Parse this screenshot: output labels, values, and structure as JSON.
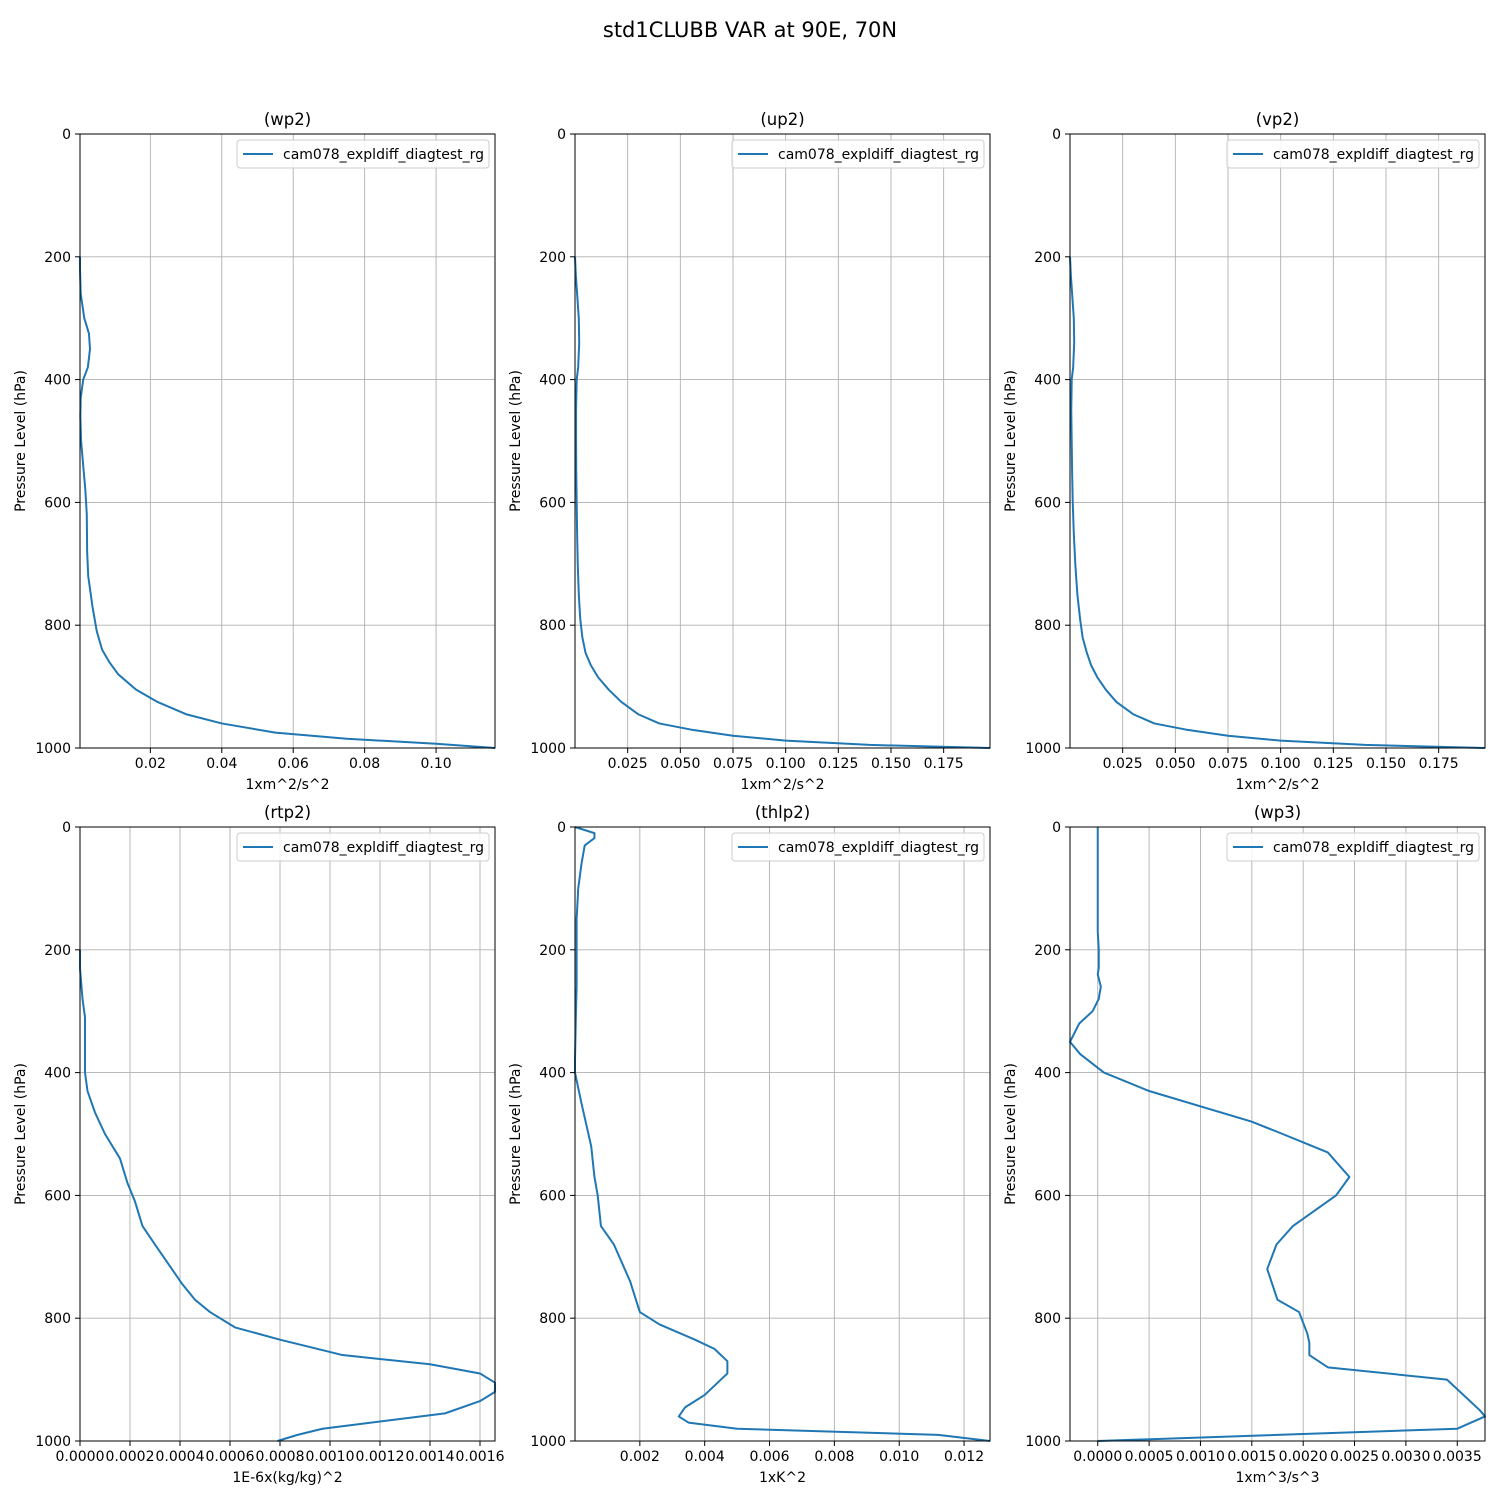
{
  "figure": {
    "suptitle": "std1CLUBB VAR at 90E, 70N"
  },
  "chart_data": [
    {
      "type": "line",
      "title": "(wp2)",
      "xlabel": "1xm^2/s^2",
      "ylabel": "Pressure Level (hPa)",
      "xlim": [
        0.0003,
        0.1165
      ],
      "ylim": [
        1000,
        0
      ],
      "y_inverted": true,
      "xticks": [
        0.02,
        0.04,
        0.06,
        0.08,
        0.1
      ],
      "xtick_labels": [
        "0.02",
        "0.04",
        "0.06",
        "0.08",
        "0.10"
      ],
      "yticks": [
        0,
        200,
        400,
        600,
        800,
        1000
      ],
      "ytick_labels": [
        "0",
        "200",
        "400",
        "600",
        "800",
        "1000"
      ],
      "grid": true,
      "legend_position": "top-right",
      "line_color": "#1f77b4",
      "series": [
        {
          "name": "cam078_expldiff_diagtest_rg",
          "x": [
            0.0003,
            0.0003,
            0.0005,
            0.0015,
            0.0028,
            0.0031,
            0.0025,
            0.0012,
            0.0005,
            0.0004,
            0.0006,
            0.0012,
            0.0018,
            0.0022,
            0.0023,
            0.0026,
            0.0038,
            0.005,
            0.0065,
            0.0085,
            0.011,
            0.016,
            0.022,
            0.03,
            0.04,
            0.055,
            0.075,
            0.1,
            0.1165
          ],
          "y": [
            200,
            220,
            260,
            300,
            325,
            350,
            380,
            400,
            430,
            460,
            500,
            540,
            580,
            620,
            680,
            720,
            770,
            810,
            840,
            860,
            880,
            905,
            925,
            945,
            960,
            975,
            985,
            993,
            1000
          ]
        }
      ]
    },
    {
      "type": "line",
      "title": "(up2)",
      "xlabel": "1xm^2/s^2",
      "ylabel": "Pressure Level (hPa)",
      "xlim": [
        0.0,
        0.197
      ],
      "ylim": [
        1000,
        0
      ],
      "y_inverted": true,
      "xticks": [
        0.025,
        0.05,
        0.075,
        0.1,
        0.125,
        0.15,
        0.175
      ],
      "xtick_labels": [
        "0.025",
        "0.050",
        "0.075",
        "0.100",
        "0.125",
        "0.150",
        "0.175"
      ],
      "yticks": [
        0,
        200,
        400,
        600,
        800,
        1000
      ],
      "ytick_labels": [
        "0",
        "200",
        "400",
        "600",
        "800",
        "1000"
      ],
      "grid": true,
      "legend_position": "top-right",
      "line_color": "#1f77b4",
      "series": [
        {
          "name": "cam078_expldiff_diagtest_rg",
          "x": [
            0.0,
            0.0004,
            0.0012,
            0.0018,
            0.002,
            0.0015,
            0.0008,
            0.0005,
            0.0005,
            0.0006,
            0.0008,
            0.001,
            0.0013,
            0.0018,
            0.0025,
            0.0035,
            0.005,
            0.0075,
            0.011,
            0.016,
            0.022,
            0.03,
            0.04,
            0.055,
            0.075,
            0.1,
            0.14,
            0.197
          ],
          "y": [
            200,
            230,
            270,
            300,
            340,
            380,
            400,
            450,
            500,
            550,
            600,
            650,
            700,
            750,
            790,
            820,
            845,
            865,
            885,
            905,
            925,
            945,
            960,
            970,
            980,
            988,
            995,
            1000
          ]
        }
      ]
    },
    {
      "type": "line",
      "title": "(vp2)",
      "xlabel": "1xm^2/s^2",
      "ylabel": "Pressure Level (hPa)",
      "xlim": [
        0.0,
        0.197
      ],
      "ylim": [
        1000,
        0
      ],
      "y_inverted": true,
      "xticks": [
        0.025,
        0.05,
        0.075,
        0.1,
        0.125,
        0.15,
        0.175
      ],
      "xtick_labels": [
        "0.025",
        "0.050",
        "0.075",
        "0.100",
        "0.125",
        "0.150",
        "0.175"
      ],
      "yticks": [
        0,
        200,
        400,
        600,
        800,
        1000
      ],
      "ytick_labels": [
        "0",
        "200",
        "400",
        "600",
        "800",
        "1000"
      ],
      "grid": true,
      "legend_position": "top-right",
      "line_color": "#1f77b4",
      "series": [
        {
          "name": "cam078_expldiff_diagtest_rg",
          "x": [
            0.0,
            0.0004,
            0.0012,
            0.0018,
            0.002,
            0.0015,
            0.0008,
            0.0006,
            0.0008,
            0.001,
            0.0013,
            0.0018,
            0.0025,
            0.0035,
            0.0048,
            0.006,
            0.008,
            0.01,
            0.013,
            0.017,
            0.022,
            0.03,
            0.04,
            0.055,
            0.075,
            0.1,
            0.14,
            0.197
          ],
          "y": [
            200,
            230,
            270,
            300,
            340,
            380,
            400,
            450,
            500,
            550,
            600,
            650,
            700,
            750,
            790,
            820,
            845,
            865,
            885,
            905,
            925,
            945,
            960,
            970,
            980,
            988,
            995,
            1000
          ]
        }
      ]
    },
    {
      "type": "line",
      "title": "(rtp2)",
      "xlabel": "1E-6x(kg/kg)^2",
      "ylabel": "Pressure Level (hPa)",
      "xlim": [
        0.0,
        0.00166
      ],
      "ylim": [
        1000,
        0
      ],
      "y_inverted": true,
      "xticks": [
        0.0,
        0.0002,
        0.0004,
        0.0006,
        0.0008,
        0.001,
        0.0012,
        0.0014,
        0.0016
      ],
      "xtick_labels": [
        "0.0000",
        "0.0002",
        "0.0004",
        "0.0006",
        "0.0008",
        "0.0010",
        "0.0012",
        "0.0014",
        "0.0016"
      ],
      "yticks": [
        0,
        200,
        400,
        600,
        800,
        1000
      ],
      "ytick_labels": [
        "0",
        "200",
        "400",
        "600",
        "800",
        "1000"
      ],
      "grid": true,
      "legend_position": "top-right",
      "line_color": "#1f77b4",
      "series": [
        {
          "name": "cam078_expldiff_diagtest_rg",
          "x": [
            0.0,
            0.0,
            1e-05,
            2e-05,
            2e-05,
            2e-05,
            3e-05,
            6e-05,
            0.0001,
            0.00016,
            0.00019,
            0.00022,
            0.00025,
            0.0003,
            0.00041,
            0.00046,
            0.00052,
            0.00062,
            0.0008,
            0.00105,
            0.0014,
            0.0016,
            0.00166,
            0.00166,
            0.0016,
            0.00146,
            0.00097,
            0.00087,
            0.00079
          ],
          "y": [
            200,
            230,
            280,
            310,
            350,
            400,
            430,
            465,
            500,
            540,
            580,
            610,
            650,
            680,
            745,
            770,
            790,
            815,
            835,
            860,
            875,
            890,
            905,
            920,
            935,
            955,
            980,
            990,
            1000
          ]
        }
      ]
    },
    {
      "type": "line",
      "title": "(thlp2)",
      "xlabel": "1xK^2",
      "ylabel": "Pressure Level (hPa)",
      "xlim": [
        0.0,
        0.0128
      ],
      "ylim": [
        1000,
        0
      ],
      "y_inverted": true,
      "xticks": [
        0.002,
        0.004,
        0.006,
        0.008,
        0.01,
        0.012
      ],
      "xtick_labels": [
        "0.002",
        "0.004",
        "0.006",
        "0.008",
        "0.010",
        "0.012"
      ],
      "yticks": [
        0,
        200,
        400,
        600,
        800,
        1000
      ],
      "ytick_labels": [
        "0",
        "200",
        "400",
        "600",
        "800",
        "1000"
      ],
      "grid": true,
      "legend_position": "top-right",
      "line_color": "#1f77b4",
      "series": [
        {
          "name": "cam078_expldiff_diagtest_rg",
          "x": [
            0.0,
            0.0006,
            0.0006,
            0.0003,
            0.0002,
            0.0001,
            5e-05,
            5e-05,
            5e-05,
            3e-05,
            0.0,
            0.0,
            0.0002,
            0.0005,
            0.0006,
            0.0007,
            0.0008,
            0.0012,
            0.0017,
            0.002,
            0.0026,
            0.0037,
            0.0043,
            0.0047,
            0.0047,
            0.0044,
            0.004,
            0.0034,
            0.0032,
            0.0035,
            0.005,
            0.0112,
            0.0128
          ],
          "y": [
            0,
            10,
            18,
            30,
            60,
            100,
            150,
            200,
            260,
            300,
            380,
            400,
            450,
            520,
            570,
            600,
            650,
            680,
            740,
            790,
            810,
            835,
            850,
            870,
            890,
            905,
            925,
            945,
            960,
            970,
            980,
            990,
            1000
          ]
        }
      ]
    },
    {
      "type": "line",
      "title": "(wp3)",
      "xlabel": "1xm^3/s^3",
      "ylabel": "Pressure Level (hPa)",
      "xlim": [
        -0.00027,
        0.00377
      ],
      "ylim": [
        1000,
        0
      ],
      "y_inverted": true,
      "xticks": [
        0.0,
        0.0005,
        0.001,
        0.0015,
        0.002,
        0.0025,
        0.003,
        0.0035
      ],
      "xtick_labels": [
        "0.0000",
        "0.0005",
        "0.0010",
        "0.0015",
        "0.0020",
        "0.0025",
        "0.0030",
        "0.0035"
      ],
      "yticks": [
        0,
        200,
        400,
        600,
        800,
        1000
      ],
      "ytick_labels": [
        "0",
        "200",
        "400",
        "600",
        "800",
        "1000"
      ],
      "grid": true,
      "legend_position": "top-right",
      "line_color": "#1f77b4",
      "series": [
        {
          "name": "cam078_expldiff_diagtest_rg",
          "x": [
            0.0,
            0.0,
            0.0,
            1e-05,
            1e-05,
            0.0,
            3e-05,
            1e-05,
            -5e-05,
            -0.00018,
            -0.00021,
            -0.00027,
            -0.00017,
            6e-05,
            0.0005,
            0.0015,
            0.0018,
            0.00224,
            0.00245,
            0.00232,
            0.0019,
            0.00174,
            0.00165,
            0.00171,
            0.00175,
            0.00196,
            0.00204,
            0.00206,
            0.00206,
            0.00224,
            0.0034,
            0.00372,
            0.00377,
            0.0035,
            0.0,
            0.0
          ],
          "y": [
            0,
            100,
            170,
            200,
            230,
            240,
            260,
            280,
            300,
            320,
            330,
            350,
            370,
            400,
            430,
            480,
            500,
            530,
            570,
            600,
            650,
            680,
            720,
            750,
            770,
            790,
            825,
            840,
            860,
            880,
            900,
            950,
            960,
            980,
            1000,
            1000
          ]
        }
      ]
    }
  ]
}
